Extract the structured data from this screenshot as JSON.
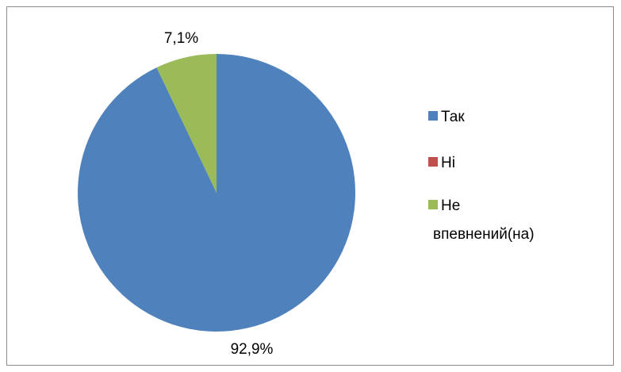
{
  "chart_data": {
    "type": "pie",
    "title": "",
    "categories": [
      "Так",
      "Ні",
      "Не впевнений(на)"
    ],
    "legend_lines": [
      [
        "Так"
      ],
      [
        "Ні"
      ],
      [
        "Не",
        "впевнений(на)"
      ]
    ],
    "values": [
      92.9,
      0,
      7.1
    ],
    "data_labels": [
      "92,9%",
      "",
      "7,1%"
    ],
    "colors": [
      "#4F81BD",
      "#C0504D",
      "#9BBB59"
    ],
    "legend_position": "right"
  }
}
